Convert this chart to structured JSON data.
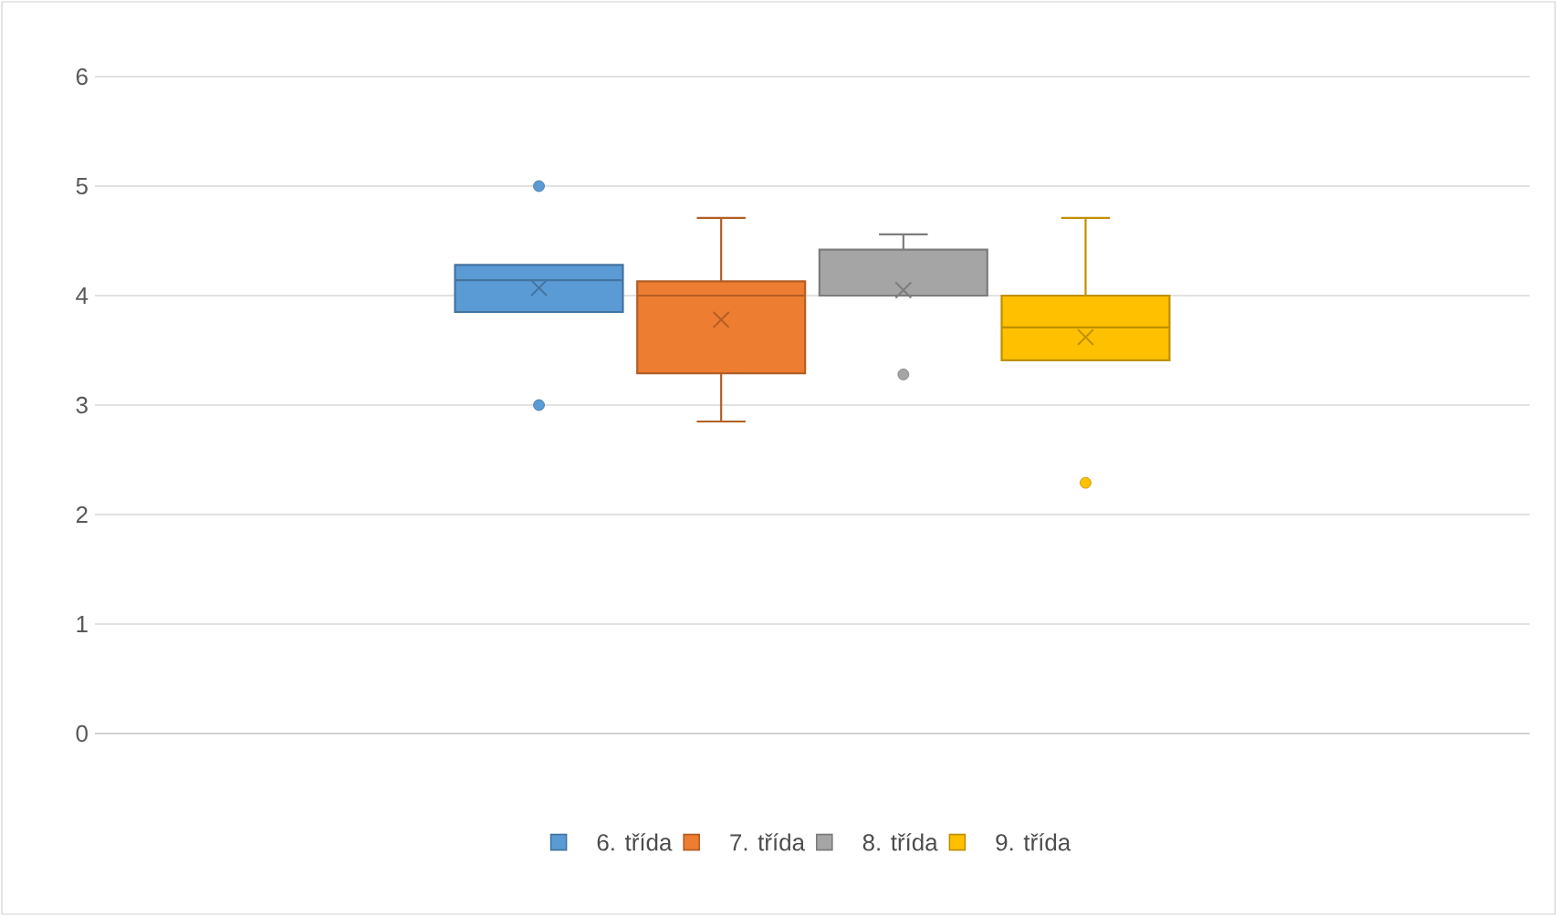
{
  "chart_data": {
    "type": "box",
    "categories": [
      null
    ],
    "ylim": [
      0,
      6
    ],
    "yticks": [
      0,
      1,
      2,
      3,
      4,
      5,
      6
    ],
    "grid": "y",
    "legend": "bottom",
    "series": [
      {
        "name": "6. třída",
        "color": "#5b9bd5",
        "boxes": [
          {
            "low": 3.85,
            "q1": 3.85,
            "median": 4.14,
            "q3": 4.28,
            "high": 4.28,
            "mean": 4.07,
            "outliers": [
              5,
              3
            ]
          }
        ]
      },
      {
        "name": "7. třída",
        "color": "#ed7d31",
        "boxes": [
          {
            "low": 2.85,
            "q1": 3.29,
            "median": 4.0,
            "q3": 4.13,
            "high": 4.71,
            "mean": 3.78
          }
        ]
      },
      {
        "name": "8. třída",
        "color": "#a5a5a5",
        "boxes": [
          {
            "low": 4.0,
            "q1": 4.0,
            "median": 4.0,
            "q3": 4.42,
            "high": 4.56,
            "mean": 4.05,
            "outliers": [
              3.28
            ]
          }
        ]
      },
      {
        "name": "9. třída",
        "color": "#ffc000",
        "boxes": [
          {
            "low": 3.41,
            "q1": 3.41,
            "median": 3.71,
            "q3": 4.0,
            "high": 4.71,
            "mean": 3.62,
            "outliers": [
              2.29
            ]
          }
        ]
      }
    ]
  }
}
